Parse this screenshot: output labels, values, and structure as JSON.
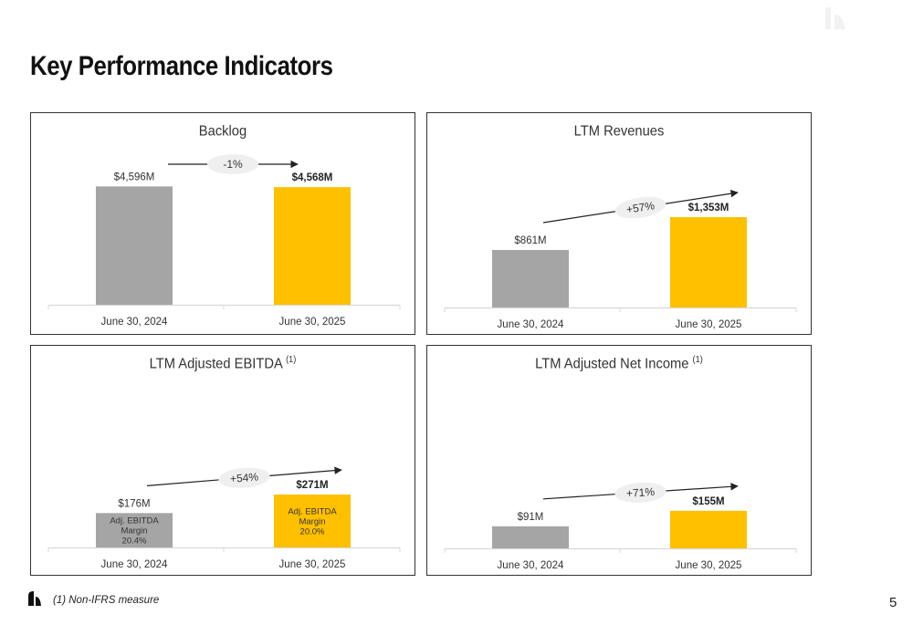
{
  "page": {
    "title": "Key Performance Indicators",
    "footnote": "(1) Non-IFRS measure",
    "page_number": "5"
  },
  "colors": {
    "prior": "#A5A5A5",
    "current": "#FFC000",
    "axis": "#D9D9D9",
    "arrow": "#222222",
    "pill": "#EFEFEF"
  },
  "icons": {
    "logo": "company-logo-icon",
    "watermark": "watermark-logo-icon"
  },
  "chart_data": [
    {
      "type": "bar",
      "title": "Backlog",
      "title_note": "",
      "categories": [
        "June 30, 2024",
        "June 30, 2025"
      ],
      "values": [
        4596,
        4568
      ],
      "unit": "$M",
      "value_labels": [
        "$4,596M",
        "$4,568M"
      ],
      "change_label": "-1%",
      "arrow_style": "flat",
      "ylim": [
        0,
        5600
      ],
      "inner_labels": []
    },
    {
      "type": "bar",
      "title": "LTM Revenues",
      "title_note": "",
      "categories": [
        "June 30, 2024",
        "June 30, 2025"
      ],
      "values": [
        861,
        1353
      ],
      "unit": "$M",
      "value_labels": [
        "$861M",
        "$1,353M"
      ],
      "change_label": "+57%",
      "arrow_style": "rising",
      "ylim": [
        0,
        2200
      ],
      "inner_labels": []
    },
    {
      "type": "bar",
      "title": "LTM Adjusted EBITDA",
      "title_note": "(1)",
      "categories": [
        "June 30, 2024",
        "June 30, 2025"
      ],
      "values": [
        176,
        271
      ],
      "unit": "$M",
      "value_labels": [
        "$176M",
        "$271M"
      ],
      "change_label": "+54%",
      "arrow_style": "rising",
      "ylim": [
        0,
        790
      ],
      "inner_labels": [
        [
          "Adj. EBITDA",
          "Margin",
          "20.4%"
        ],
        [
          "Adj. EBITDA",
          "Margin",
          "20.0%"
        ]
      ]
    },
    {
      "type": "bar",
      "title": "LTM Adjusted Net Income",
      "title_note": "(1)",
      "categories": [
        "June 30, 2024",
        "June 30, 2025"
      ],
      "values": [
        91,
        155
      ],
      "unit": "$M",
      "value_labels": [
        "$91M",
        "$155M"
      ],
      "change_label": "+71%",
      "arrow_style": "rising",
      "ylim": [
        0,
        640
      ],
      "inner_labels": []
    }
  ]
}
